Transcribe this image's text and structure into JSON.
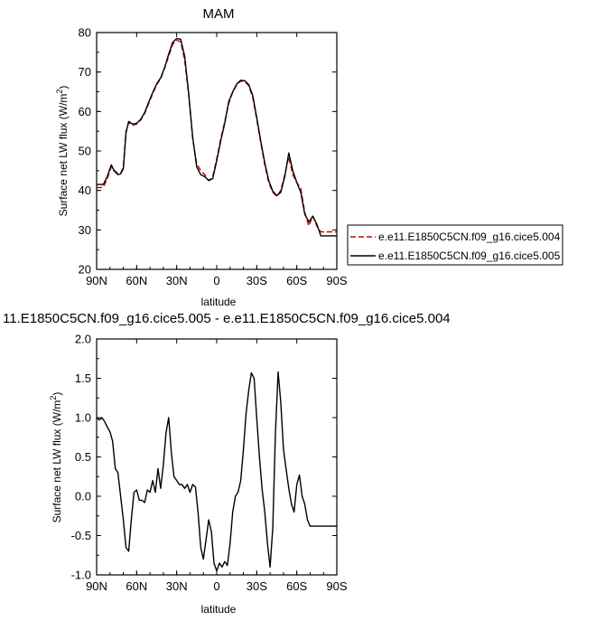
{
  "chart_data": [
    {
      "type": "line",
      "title": "MAM",
      "xlabel": "latitude",
      "ylabel": "Surface net LW flux (W/m²)",
      "xlim": [
        90,
        -90
      ],
      "ylim": [
        20,
        80
      ],
      "x_ticks": [
        90,
        60,
        30,
        0,
        -30,
        -60,
        -90
      ],
      "x_tick_labels": [
        "90N",
        "60N",
        "30N",
        "0",
        "30S",
        "60S",
        "90S"
      ],
      "y_ticks": [
        20,
        30,
        40,
        50,
        60,
        70,
        80
      ],
      "y_tick_labels": [
        "20",
        "30",
        "40",
        "50",
        "60",
        "70",
        "80"
      ],
      "legend_position": "right",
      "series": [
        {
          "name": "e.e11.E1850C5CN.f09_g16.cice5.004",
          "color": "#cc0000",
          "dash": "dashed",
          "x": [
            90,
            85,
            82,
            79,
            77,
            74,
            72,
            70,
            68,
            66,
            63,
            60,
            57,
            54,
            51,
            48,
            45,
            42,
            39,
            36,
            33,
            30,
            27,
            24,
            21,
            18,
            15,
            12,
            9,
            6,
            3,
            0,
            -3,
            -6,
            -9,
            -12,
            -15,
            -18,
            -21,
            -24,
            -27,
            -30,
            -33,
            -36,
            -39,
            -42,
            -45,
            -48,
            -51,
            -54,
            -57,
            -60,
            -63,
            -66,
            -69,
            -72,
            -75,
            -78,
            -81,
            -84,
            -87,
            -90
          ],
          "y": [
            40.7,
            40.8,
            43,
            46,
            45.2,
            44.3,
            44.3,
            46,
            55,
            57.2,
            56.5,
            56.8,
            57.8,
            59.5,
            62,
            64.5,
            66.8,
            68.3,
            71,
            74,
            77,
            78,
            77.7,
            73,
            64,
            53,
            46.8,
            45,
            44,
            42.5,
            43.5,
            48,
            53,
            57.5,
            62,
            64.8,
            66.8,
            67.7,
            67.6,
            66.5,
            63.5,
            58,
            52,
            46.5,
            42,
            39.5,
            38.5,
            40,
            44,
            48.5,
            44,
            42,
            40.5,
            34.5,
            31,
            33.5,
            31,
            29.5,
            29.5,
            29.5,
            29.5,
            29.5
          ]
        },
        {
          "name": "e.e11.E1850C5CN.f09_g16.cice5.005",
          "color": "#000000",
          "dash": "solid",
          "x": [
            90,
            85,
            82,
            79,
            77,
            74,
            72,
            70,
            68,
            66,
            63,
            60,
            57,
            54,
            51,
            48,
            45,
            42,
            39,
            36,
            33,
            30,
            27,
            24,
            21,
            18,
            15,
            12,
            9,
            6,
            3,
            0,
            -3,
            -6,
            -9,
            -12,
            -15,
            -18,
            -21,
            -24,
            -27,
            -30,
            -33,
            -36,
            -39,
            -42,
            -45,
            -48,
            -51,
            -54,
            -57,
            -60,
            -63,
            -66,
            -69,
            -72,
            -75,
            -78,
            -81,
            -84,
            -87,
            -90
          ],
          "y": [
            41.5,
            41.5,
            43.5,
            46.5,
            45,
            44,
            44.2,
            45.5,
            54.5,
            57.5,
            56.8,
            57,
            58,
            59.7,
            62.3,
            64.8,
            67,
            68.5,
            71.2,
            74.5,
            77.5,
            78.5,
            78.3,
            74,
            64.5,
            53.5,
            46,
            44,
            43.5,
            42.5,
            43,
            47.5,
            52.5,
            57,
            62.5,
            65,
            67,
            67.9,
            67.8,
            66.8,
            64,
            58.5,
            52.5,
            47,
            42.5,
            39.8,
            38.7,
            39.5,
            43.5,
            49.5,
            45,
            42,
            39.5,
            34,
            32,
            33.5,
            31.5,
            28.5,
            28.5,
            28.5,
            28.5,
            28.5
          ]
        }
      ]
    },
    {
      "type": "line",
      "title": "11.E1850C5CN.f09_g16.cice5.005 - e.e11.E1850C5CN.f09_g16.cice5.004",
      "xlabel": "latitude",
      "ylabel": "Surface net LW flux (W/m²)",
      "xlim": [
        90,
        -90
      ],
      "ylim": [
        -1.0,
        2.0
      ],
      "x_ticks": [
        90,
        60,
        30,
        0,
        -30,
        -60,
        -90
      ],
      "x_tick_labels": [
        "90N",
        "60N",
        "30N",
        "0",
        "30S",
        "60S",
        "90S"
      ],
      "y_ticks": [
        -1.0,
        -0.5,
        0.0,
        0.5,
        1.0,
        1.5,
        2.0
      ],
      "y_tick_labels": [
        "-1.0",
        "-0.5",
        "0.0",
        "0.5",
        "1.0",
        "1.5",
        "2.0"
      ],
      "series": [
        {
          "color": "#000000",
          "dash": "solid",
          "x": [
            90,
            88,
            86,
            84,
            82,
            80,
            78,
            76,
            74,
            72,
            70,
            68,
            66,
            64,
            62,
            60,
            58,
            56,
            54,
            52,
            50,
            48,
            46,
            44,
            42,
            40,
            38,
            36,
            34,
            32,
            30,
            28,
            26,
            24,
            22,
            20,
            18,
            16,
            14,
            12,
            10,
            8,
            6,
            4,
            2,
            0,
            -2,
            -4,
            -6,
            -8,
            -10,
            -12,
            -14,
            -16,
            -18,
            -20,
            -22,
            -24,
            -26,
            -28,
            -30,
            -32,
            -34,
            -36,
            -38,
            -40,
            -42,
            -44,
            -46,
            -48,
            -50,
            -52,
            -54,
            -56,
            -58,
            -60,
            -62,
            -64,
            -66,
            -68,
            -70,
            -72,
            -74,
            -76,
            -78,
            -80,
            -82,
            -84,
            -86,
            -88,
            -90
          ],
          "y": [
            1.0,
            0.97,
            1.0,
            0.95,
            0.88,
            0.82,
            0.7,
            0.35,
            0.3,
            0.0,
            -0.3,
            -0.65,
            -0.7,
            -0.3,
            0.05,
            0.08,
            -0.05,
            -0.05,
            -0.08,
            0.08,
            0.05,
            0.2,
            0.05,
            0.35,
            0.1,
            0.4,
            0.8,
            1.0,
            0.55,
            0.25,
            0.2,
            0.15,
            0.15,
            0.1,
            0.15,
            0.05,
            0.15,
            0.12,
            -0.2,
            -0.65,
            -0.8,
            -0.55,
            -0.3,
            -0.45,
            -0.85,
            -0.95,
            -0.85,
            -0.9,
            -0.83,
            -0.88,
            -0.6,
            -0.2,
            0.0,
            0.05,
            0.2,
            0.6,
            1.05,
            1.35,
            1.57,
            1.5,
            1.0,
            0.5,
            0.1,
            -0.2,
            -0.6,
            -0.9,
            -0.4,
            0.8,
            1.58,
            1.2,
            0.6,
            0.35,
            0.1,
            -0.1,
            -0.2,
            0.15,
            0.27,
            0.0,
            -0.1,
            -0.3,
            -0.38,
            -0.38,
            -0.38,
            -0.38,
            -0.38,
            -0.38,
            -0.38,
            -0.38,
            -0.38,
            -0.38,
            -0.38
          ]
        }
      ]
    }
  ]
}
